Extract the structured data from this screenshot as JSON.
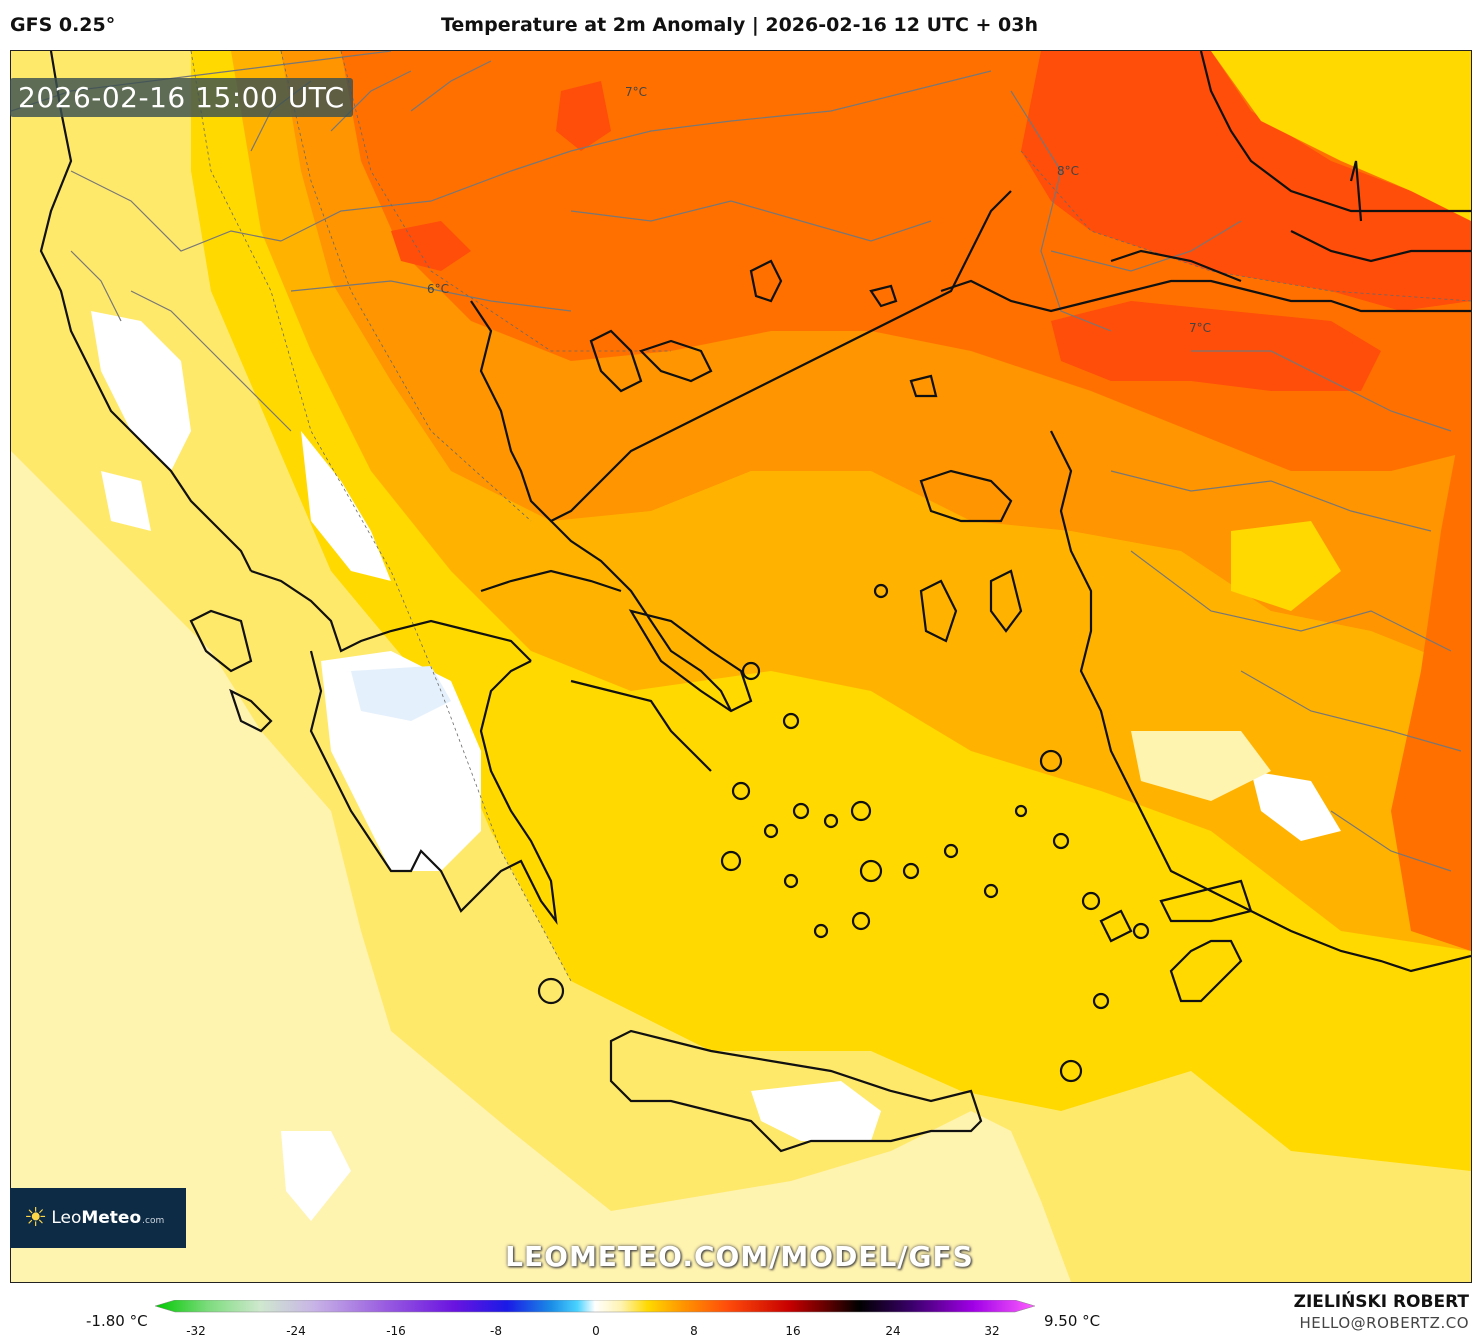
{
  "header": {
    "model": "GFS 0.25°",
    "title": "Temperature at 2m Anomaly | 2026-02-16 12 UTC + 03h"
  },
  "timestamp": "2026-02-16 15:00 UTC",
  "contour_labels": [
    "7°C",
    "8°C",
    "6°C",
    "7°C"
  ],
  "logo": {
    "brand_light": "Leo",
    "brand_bold": "Meteo",
    "suffix": ".com"
  },
  "watermark": "LEOMETEO.COM/MODEL/GFS",
  "legend": {
    "min_label": "-1.80 °C",
    "max_label": "9.50 °C",
    "ticks": [
      "-32",
      "-24",
      "-16",
      "-8",
      "0",
      "8",
      "16",
      "24",
      "32"
    ]
  },
  "credit": {
    "name": "ZIELIŃSKI ROBERT",
    "email": "HELLO@ROBERTZ.CO"
  },
  "colors": {
    "pale": "#fff3b0",
    "light_yellow": "#ffe96a",
    "yellow": "#ffd900",
    "amber": "#ffb300",
    "orange": "#ff9500",
    "deep_orange": "#ff7000",
    "red_orange": "#ff4d0a",
    "coast": "#111111",
    "border": "#777777"
  }
}
